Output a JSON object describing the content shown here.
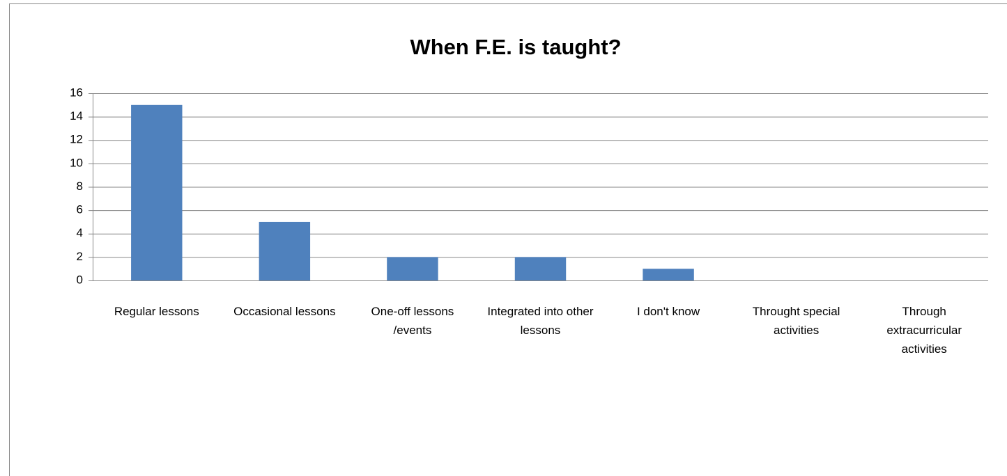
{
  "chart_data": {
    "type": "bar",
    "title": "When F.E. is taught?",
    "categories": [
      "Regular lessons",
      "Occasional lessons",
      "One-off lessons /events",
      "Integrated into other lessons",
      "I don't know",
      "Throught special activities",
      "Through extracurricular activities"
    ],
    "values": [
      15,
      5,
      2,
      2,
      1,
      0,
      0
    ],
    "color": "#4f81bd",
    "ylim": [
      0,
      16
    ],
    "yticks": [
      0,
      2,
      4,
      6,
      8,
      10,
      12,
      14,
      16
    ],
    "grid": true
  }
}
